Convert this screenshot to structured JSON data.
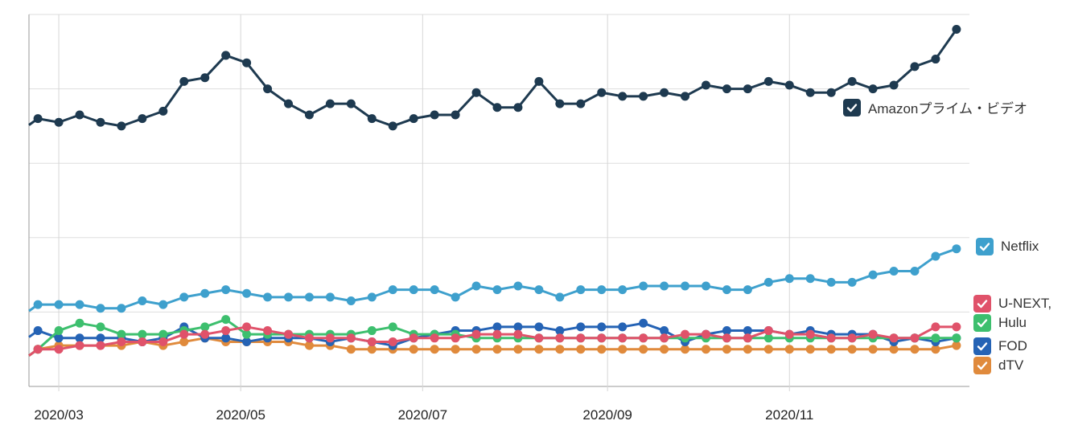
{
  "chart_data": {
    "type": "line",
    "title": "",
    "xlabel": "",
    "ylabel": "",
    "grid": true,
    "legend_position": "right",
    "x_tick_labels": [
      "2020/03",
      "2020/05",
      "2020/07",
      "2020/09",
      "2020/11"
    ],
    "x_tick_dates": [
      "2020-03-01",
      "2020-05-01",
      "2020-07-01",
      "2020-09-01",
      "2020-11-01"
    ],
    "x": [
      "2020-02-23",
      "2020-03-01",
      "2020-03-08",
      "2020-03-15",
      "2020-03-22",
      "2020-03-29",
      "2020-04-05",
      "2020-04-12",
      "2020-04-19",
      "2020-04-26",
      "2020-05-03",
      "2020-05-10",
      "2020-05-17",
      "2020-05-24",
      "2020-05-31",
      "2020-06-07",
      "2020-06-14",
      "2020-06-21",
      "2020-06-28",
      "2020-07-05",
      "2020-07-12",
      "2020-07-19",
      "2020-07-26",
      "2020-08-02",
      "2020-08-09",
      "2020-08-16",
      "2020-08-23",
      "2020-08-30",
      "2020-09-06",
      "2020-09-13",
      "2020-09-20",
      "2020-09-27",
      "2020-10-04",
      "2020-10-11",
      "2020-10-18",
      "2020-10-25",
      "2020-11-01",
      "2020-11-08",
      "2020-11-15",
      "2020-11-22",
      "2020-11-29",
      "2020-12-06",
      "2020-12-13",
      "2020-12-20",
      "2020-12-27"
    ],
    "ylim": [
      0,
      100
    ],
    "series": [
      {
        "name": "Amazonプライム・ビデオ",
        "color": "#1e3a50",
        "values": [
          72,
          71,
          73,
          71,
          70,
          72,
          74,
          82,
          83,
          89,
          87,
          80,
          76,
          73,
          76,
          76,
          72,
          70,
          72,
          73,
          73,
          79,
          75,
          75,
          82,
          76,
          76,
          79,
          78,
          78,
          79,
          78,
          81,
          80,
          80,
          82,
          81,
          79,
          79,
          82,
          80,
          81,
          86,
          88,
          96
        ]
      },
      {
        "name": "Netflix",
        "color": "#3ea0cd",
        "values": [
          22,
          22,
          22,
          21,
          21,
          23,
          22,
          24,
          25,
          26,
          25,
          24,
          24,
          24,
          24,
          23,
          24,
          26,
          26,
          26,
          24,
          27,
          26,
          27,
          26,
          24,
          26,
          26,
          26,
          27,
          27,
          27,
          27,
          26,
          26,
          28,
          29,
          29,
          28,
          28,
          30,
          31,
          31,
          35,
          37
        ]
      },
      {
        "name": "U-NEXT",
        "color": "#e0526a",
        "values": [
          10,
          10,
          11,
          11,
          12,
          12,
          12,
          14,
          14,
          15,
          16,
          15,
          14,
          13,
          13,
          13,
          12,
          12,
          13,
          13,
          13,
          14,
          14,
          14,
          13,
          13,
          13,
          13,
          13,
          13,
          13,
          14,
          14,
          13,
          13,
          15,
          14,
          14,
          13,
          13,
          14,
          13,
          13,
          16,
          16
        ]
      },
      {
        "name": "Hulu",
        "color": "#3dbf6e",
        "values": [
          10,
          15,
          17,
          16,
          14,
          14,
          14,
          15,
          16,
          18,
          14,
          14,
          14,
          14,
          14,
          14,
          15,
          16,
          14,
          14,
          14,
          13,
          13,
          13,
          13,
          13,
          13,
          13,
          13,
          13,
          13,
          13,
          13,
          13,
          13,
          13,
          13,
          13,
          13,
          13,
          13,
          13,
          13,
          13,
          13
        ]
      },
      {
        "name": "FOD",
        "color": "#2563b5",
        "values": [
          15,
          13,
          13,
          13,
          13,
          12,
          13,
          16,
          13,
          13,
          12,
          13,
          13,
          13,
          12,
          13,
          12,
          11,
          13,
          14,
          15,
          15,
          16,
          16,
          16,
          15,
          16,
          16,
          16,
          17,
          15,
          12,
          14,
          15,
          15,
          15,
          14,
          15,
          14,
          14,
          14,
          12,
          13,
          12,
          13
        ]
      },
      {
        "name": "dTV",
        "color": "#e08a3c",
        "values": [
          10,
          11,
          11,
          11,
          11,
          12,
          11,
          12,
          13,
          12,
          12,
          12,
          12,
          11,
          11,
          10,
          10,
          10,
          10,
          10,
          10,
          10,
          10,
          10,
          10,
          10,
          10,
          10,
          10,
          10,
          10,
          10,
          10,
          10,
          10,
          10,
          10,
          10,
          10,
          10,
          10,
          10,
          10,
          10,
          11
        ]
      }
    ]
  },
  "legend": [
    {
      "label": "Amazonプライム・ビデオ",
      "color": "#1e3a50"
    },
    {
      "label": "Netflix",
      "color": "#3ea0cd"
    },
    {
      "label": "U-NEXT,",
      "color": "#e0526a"
    },
    {
      "label": "Hulu",
      "color": "#3dbf6e"
    },
    {
      "label": "FOD",
      "color": "#2563b5"
    },
    {
      "label": "dTV",
      "color": "#e08a3c"
    }
  ]
}
